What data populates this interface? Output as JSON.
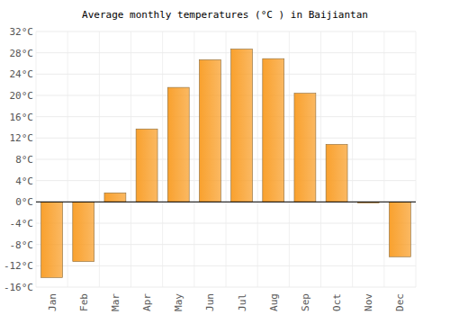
{
  "chart_data": {
    "type": "bar",
    "title": "Average monthly temperatures (°C ) in Baijiantan",
    "categories": [
      "Jan",
      "Feb",
      "Mar",
      "Apr",
      "May",
      "Jun",
      "Jul",
      "Aug",
      "Sep",
      "Oct",
      "Nov",
      "Dec"
    ],
    "values": [
      -14.2,
      -11.2,
      1.7,
      13.7,
      21.5,
      26.7,
      28.7,
      26.9,
      20.4,
      10.8,
      -0.2,
      -10.3
    ],
    "color": "#f9a12e",
    "ylim": [
      -16,
      32
    ],
    "yticks": [
      {
        "value": -16,
        "label": "-16°C"
      },
      {
        "value": -12,
        "label": "-12°C"
      },
      {
        "value": -8,
        "label": "-8°C"
      },
      {
        "value": -4,
        "label": "-4°C"
      },
      {
        "value": 0,
        "label": "0°C"
      },
      {
        "value": 4,
        "label": "4°C"
      },
      {
        "value": 8,
        "label": "8°C"
      },
      {
        "value": 12,
        "label": "12°C"
      },
      {
        "value": 16,
        "label": "16°C"
      },
      {
        "value": 20,
        "label": "20°C"
      },
      {
        "value": 24,
        "label": "24°C"
      },
      {
        "value": 28,
        "label": "28°C"
      },
      {
        "value": 32,
        "label": "32°C"
      }
    ],
    "grid": true
  }
}
